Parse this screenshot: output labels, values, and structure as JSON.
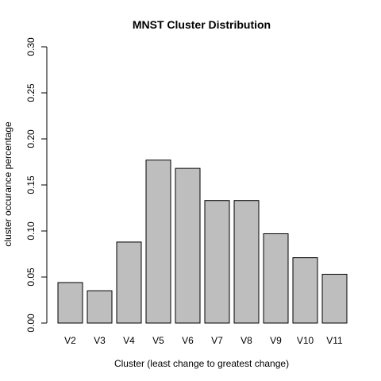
{
  "chart_data": {
    "type": "bar",
    "title": "MNST Cluster Distribution",
    "xlabel": "Cluster (least change to greatest change)",
    "ylabel": "cluster occurance percentage",
    "categories": [
      "V2",
      "V3",
      "V4",
      "V5",
      "V6",
      "V7",
      "V8",
      "V9",
      "V10",
      "V11"
    ],
    "values": [
      0.044,
      0.035,
      0.088,
      0.177,
      0.168,
      0.133,
      0.133,
      0.097,
      0.071,
      0.053
    ],
    "ylim": [
      0,
      0.3
    ],
    "yticks": [
      "0.00",
      "0.05",
      "0.10",
      "0.15",
      "0.20",
      "0.25",
      "0.30"
    ],
    "grid": false,
    "bar_color": "#bebebe",
    "bar_border_color": "#000000"
  }
}
